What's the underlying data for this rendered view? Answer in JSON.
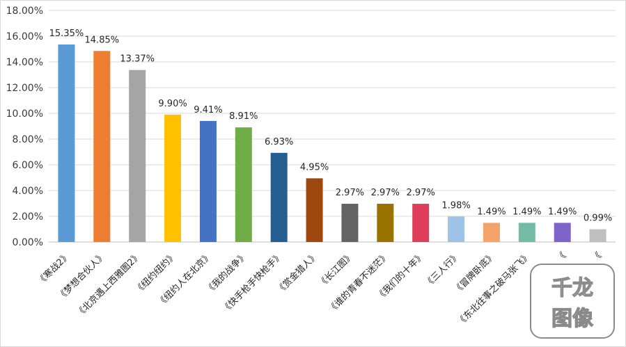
{
  "chart_data": {
    "type": "bar",
    "title": "",
    "xlabel": "",
    "ylabel": "",
    "ylim": [
      0,
      18
    ],
    "y_tick_values": [
      0,
      2,
      4,
      6,
      8,
      10,
      12,
      14,
      16,
      18
    ],
    "y_tick_labels": [
      "0.00%",
      "2.00%",
      "4.00%",
      "6.00%",
      "8.00%",
      "10.00%",
      "12.00%",
      "14.00%",
      "16.00%",
      "18.00%"
    ],
    "grid": true,
    "legend": "none",
    "categories": [
      "《寒战2》",
      "《梦想合伙人》",
      "《北京遇上西雅图2》",
      "《纽约纽约》",
      "《纽约人在北京》",
      "《我的战争》",
      "《快手枪手快枪手》",
      "《赏金猎人》",
      "《长江图》",
      "《谁的青春不迷茫》",
      "《我们的十年》",
      "《三人行》",
      "《冒牌卧底》",
      "《东北往事之破马张飞》",
      "《",
      "《"
    ],
    "values": [
      15.35,
      14.85,
      13.37,
      9.9,
      9.41,
      8.91,
      6.93,
      4.95,
      2.97,
      2.97,
      2.97,
      1.98,
      1.49,
      1.49,
      1.49,
      0.99
    ],
    "data_labels": [
      "15.35%",
      "14.85%",
      "13.37%",
      "9.90%",
      "9.41%",
      "8.91%",
      "6.93%",
      "4.95%",
      "2.97%",
      "2.97%",
      "2.97%",
      "1.98%",
      "1.49%",
      "1.49%",
      "1.49%",
      "0.99%"
    ],
    "bar_colors": [
      "#5B9BD5",
      "#ED7D31",
      "#A5A5A5",
      "#FFC000",
      "#4472C4",
      "#70AD47",
      "#255E91",
      "#9E480E",
      "#636363",
      "#997300",
      "#DF3E5B",
      "#9DC3E6",
      "#F4A46B",
      "#72BBA4",
      "#7E64C8",
      "#BFBFBF"
    ]
  },
  "watermark": {
    "text_line1": "千龙",
    "text_line2": "图像"
  }
}
